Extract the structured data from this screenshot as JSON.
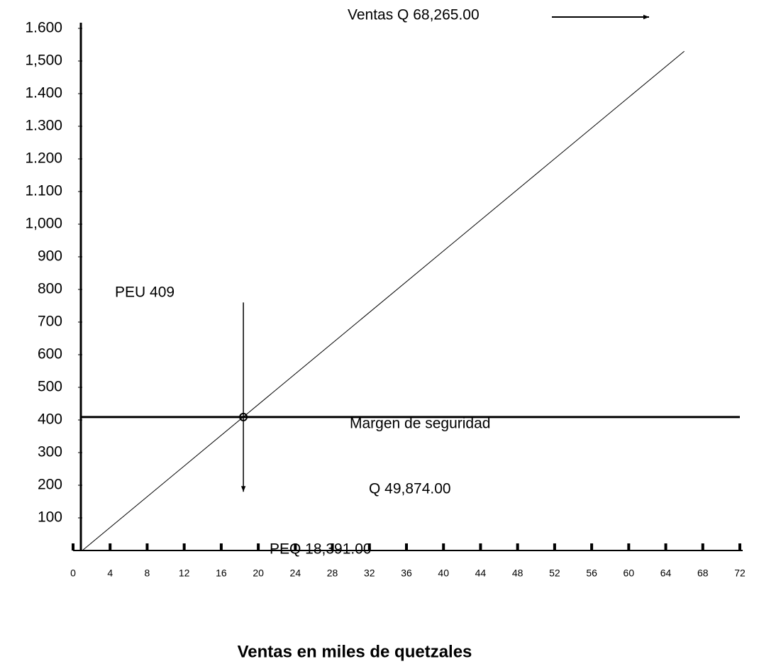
{
  "chart_data": {
    "type": "line",
    "xlabel": "Ventas en miles de quetzales",
    "x": [
      1,
      66
    ],
    "series": [
      {
        "values": [
          0,
          1530
        ],
        "color": "#000000"
      }
    ],
    "reference_y": 409,
    "reference_x": 18.391,
    "reference_x_span": [
      760,
      180
    ],
    "annotations": [
      "Ventas Q 68,265.00",
      "PEU  409",
      "Margen de seguridad",
      "Q 49,874.00",
      "PEQ 18,391.00"
    ],
    "xlim": [
      0,
      72
    ],
    "xticks": [
      0,
      4,
      8,
      12,
      16,
      20,
      24,
      28,
      32,
      36,
      40,
      44,
      48,
      52,
      56,
      60,
      64,
      68,
      72
    ],
    "ylim": [
      0,
      1600
    ],
    "yticks": [
      100,
      200,
      300,
      400,
      500,
      600,
      700,
      800,
      900,
      {
        "value": 1000,
        "label": "1,000"
      },
      {
        "value": 1100,
        "label": "1.100"
      },
      {
        "value": 1200,
        "label": "1.200"
      },
      {
        "value": 1300,
        "label": "1.300"
      },
      {
        "value": 1400,
        "label": "1.400"
      },
      {
        "value": 1500,
        "label": "1,500"
      },
      {
        "value": 1600,
        "label": "1.600"
      }
    ],
    "grid": false
  }
}
